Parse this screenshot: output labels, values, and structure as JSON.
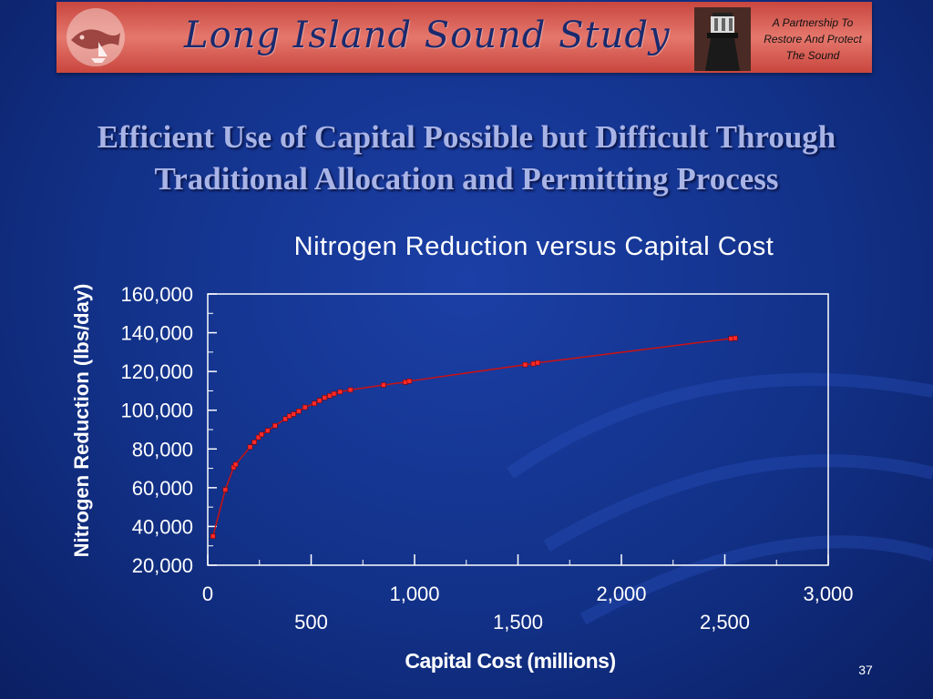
{
  "banner": {
    "title": "Long Island Sound Study",
    "tagline": [
      "A Partnership To",
      "Restore And Protect",
      "The Sound"
    ]
  },
  "slide": {
    "title_lines": [
      "Efficient Use of Capital Possible but Difficult Through",
      "Traditional Allocation and Permitting Process"
    ],
    "number": "37"
  },
  "colors": {
    "background": "#123188",
    "banner": "#d9584f",
    "series_line": "#cc1111",
    "marker": "#ff2a2a"
  },
  "chart_data": {
    "type": "line",
    "title": "Nitrogen Reduction versus Capital Cost",
    "xlabel": "Capital Cost (millions)",
    "ylabel": "Nitrogen Reduction (lbs/day)",
    "xlim": [
      0,
      3000
    ],
    "ylim": [
      20000,
      160000
    ],
    "x_ticks_upper": [
      "0",
      "1,000",
      "2,000",
      "3,000"
    ],
    "x_ticks_lower": [
      "500",
      "1,500",
      "2,500"
    ],
    "y_ticks": [
      "160,000",
      "140,000",
      "120,000",
      "100,000",
      "80,000",
      "60,000",
      "40,000",
      "20,000"
    ],
    "grid": false,
    "series": [
      {
        "marker": "square",
        "points": [
          [
            25,
            35000
          ],
          [
            85,
            59000
          ],
          [
            125,
            70500
          ],
          [
            135,
            72000
          ],
          [
            205,
            81000
          ],
          [
            225,
            83500
          ],
          [
            245,
            86000
          ],
          [
            260,
            87500
          ],
          [
            290,
            89500
          ],
          [
            325,
            92000
          ],
          [
            375,
            95500
          ],
          [
            395,
            97000
          ],
          [
            415,
            98000
          ],
          [
            440,
            99500
          ],
          [
            470,
            101500
          ],
          [
            515,
            103500
          ],
          [
            540,
            105000
          ],
          [
            565,
            106500
          ],
          [
            590,
            107500
          ],
          [
            610,
            108500
          ],
          [
            640,
            109500
          ],
          [
            690,
            110500
          ],
          [
            850,
            113000
          ],
          [
            955,
            114500
          ],
          [
            975,
            115000
          ],
          [
            1535,
            123500
          ],
          [
            1575,
            124000
          ],
          [
            1595,
            124500
          ],
          [
            2530,
            137000
          ],
          [
            2550,
            137200
          ]
        ]
      }
    ]
  }
}
